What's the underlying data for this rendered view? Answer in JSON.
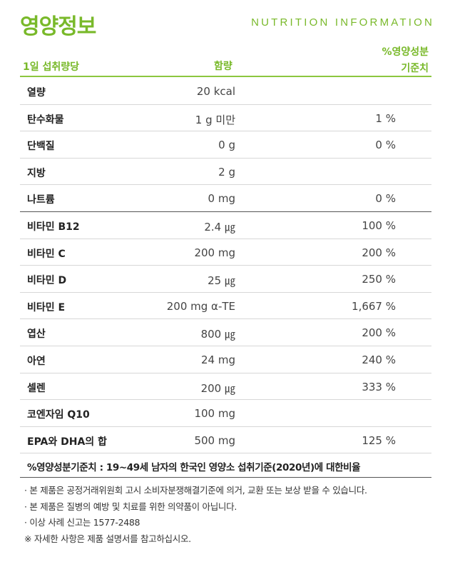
{
  "header": {
    "title_ko": "영양정보",
    "title_en": "NUTRITION INFORMATION"
  },
  "columns": {
    "name": "1일 섭취량당",
    "amount": "함량",
    "pct_line1": "%영양성분",
    "pct_line2": "기준치"
  },
  "rows": [
    {
      "name": "열량",
      "amount": "20 kcal",
      "pct": ""
    },
    {
      "name": "탄수화물",
      "amount": "1 g 미만",
      "pct": "1 %"
    },
    {
      "name": "단백질",
      "amount": "0 g",
      "pct": "0 %"
    },
    {
      "name": "지방",
      "amount": "2 g",
      "pct": ""
    },
    {
      "name": "나트륨",
      "amount": "0 mg",
      "pct": "0 %"
    },
    {
      "name": "비타민 B12",
      "amount": "2.4 ㎍",
      "pct": "100 %"
    },
    {
      "name": "비타민 C",
      "amount": "200 mg",
      "pct": "200 %"
    },
    {
      "name": "비타민 D",
      "amount": "25 ㎍",
      "pct": "250 %"
    },
    {
      "name": "비타민 E",
      "amount": "200 mg α-TE",
      "pct": "1,667 %"
    },
    {
      "name": "엽산",
      "amount": "800 ㎍",
      "pct": "200 %"
    },
    {
      "name": "아연",
      "amount": "24 mg",
      "pct": "240 %"
    },
    {
      "name": "셀렌",
      "amount": "200 ㎍",
      "pct": "333 %"
    },
    {
      "name": "코엔자임 Q10",
      "amount": "100 mg",
      "pct": ""
    },
    {
      "name": "EPA와 DHA의 합",
      "amount": "500 mg",
      "pct": "125 %"
    }
  ],
  "footnote_main": "%영양성분기준치 : 19~49세 남자의 한국인 영양소 섭취기준(2020년)에 대한비율",
  "notes": [
    "· 본 제품은 공정거래위원회 고시 소비자분쟁해결기준에 의거, 교환 또는 보상 받을 수 있습니다.",
    "· 본 제품은 질병의 예방 및 치료를 위한 의약품이 아닙니다.",
    "· 이상 사례 신고는 1577-2488",
    "※ 자세한 사항은 제품 설명서를 참고하십시오."
  ]
}
